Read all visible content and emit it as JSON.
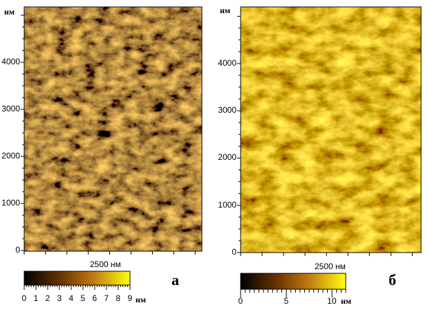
{
  "panels": [
    {
      "id": "a",
      "label": "а",
      "y_unit": "нм",
      "y_ticks": [
        "0",
        "1000",
        "2000",
        "3000",
        "4000"
      ],
      "x_scale_label": "2500 нм",
      "colorbar": {
        "ticks": [
          "0",
          "1",
          "2",
          "3",
          "4",
          "5",
          "6",
          "7",
          "8",
          "9"
        ],
        "unit": "нм",
        "range_nm": [
          0,
          9
        ]
      },
      "colors": {
        "dark": "#1a0d00",
        "mid": "#b86e00",
        "light": "#ffff30"
      }
    },
    {
      "id": "b",
      "label": "б",
      "y_unit": "нм",
      "y_ticks": [
        "0",
        "1000",
        "2000",
        "3000",
        "4000"
      ],
      "x_scale_label": "2500 нм",
      "colorbar": {
        "ticks": [
          "0",
          "5",
          "10"
        ],
        "unit": "нм",
        "range_nm": [
          0,
          11.5
        ]
      },
      "colors": {
        "dark": "#1a0d00",
        "mid": "#c88a00",
        "light": "#ffff30"
      }
    }
  ]
}
